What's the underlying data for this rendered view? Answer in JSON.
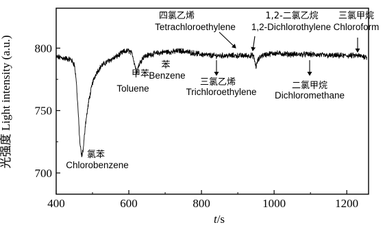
{
  "chart_data": {
    "type": "line",
    "title": "",
    "xlabel": "t/s",
    "ylabel": "光强度 Light intensity (a.u.)",
    "xlim": [
      400,
      1260
    ],
    "ylim": [
      683,
      832
    ],
    "xticks": [
      400,
      600,
      800,
      1000,
      1200
    ],
    "yticks": [
      700,
      750,
      800
    ],
    "grid": false,
    "series": [
      {
        "color": "#000000",
        "points": [
          [
            400,
            793
          ],
          [
            420,
            792
          ],
          [
            440,
            791
          ],
          [
            450,
            787
          ],
          [
            455,
            775
          ],
          [
            460,
            752
          ],
          [
            465,
            725
          ],
          [
            470,
            713
          ],
          [
            475,
            720
          ],
          [
            480,
            738
          ],
          [
            490,
            758
          ],
          [
            500,
            772
          ],
          [
            510,
            780
          ],
          [
            525,
            786
          ],
          [
            545,
            790
          ],
          [
            565,
            793
          ],
          [
            585,
            797
          ],
          [
            600,
            798
          ],
          [
            610,
            795
          ],
          [
            618,
            785
          ],
          [
            622,
            781
          ],
          [
            628,
            787
          ],
          [
            640,
            793
          ],
          [
            660,
            795
          ],
          [
            680,
            796
          ],
          [
            700,
            797
          ],
          [
            720,
            797
          ],
          [
            740,
            798
          ],
          [
            760,
            797
          ],
          [
            780,
            796
          ],
          [
            800,
            795
          ],
          [
            830,
            794
          ],
          [
            850,
            794
          ],
          [
            870,
            794
          ],
          [
            900,
            794
          ],
          [
            930,
            794
          ],
          [
            943,
            794
          ],
          [
            947,
            789
          ],
          [
            950,
            785
          ],
          [
            955,
            790
          ],
          [
            965,
            794
          ],
          [
            980,
            795
          ],
          [
            1000,
            796
          ],
          [
            1050,
            795
          ],
          [
            1100,
            795
          ],
          [
            1150,
            794
          ],
          [
            1200,
            794
          ],
          [
            1230,
            794
          ],
          [
            1255,
            793
          ]
        ]
      }
    ],
    "annotations": [
      {
        "id": "chlorobenzene",
        "cn": "氯苯",
        "en": "Chlorobenzene"
      },
      {
        "id": "toluene",
        "cn": "甲苯",
        "en": "Toluene"
      },
      {
        "id": "benzene",
        "cn": "苯",
        "en": "Benzene"
      },
      {
        "id": "tetrachloroethylene",
        "cn": "四氯乙烯",
        "en": "Tetrachloroethylene"
      },
      {
        "id": "trichloroethylene",
        "cn": "三氯乙烯",
        "en": "Trichloroethylene"
      },
      {
        "id": "dichloroethylene",
        "cn": "1,2-二氯乙烷",
        "en": "1,2-Dichlorothylene"
      },
      {
        "id": "dichloromethane",
        "cn": "二氯甲烷",
        "en": "Dichloromethane"
      },
      {
        "id": "chloroform",
        "cn": "三氯甲烷",
        "en": "Chloroform"
      }
    ]
  }
}
